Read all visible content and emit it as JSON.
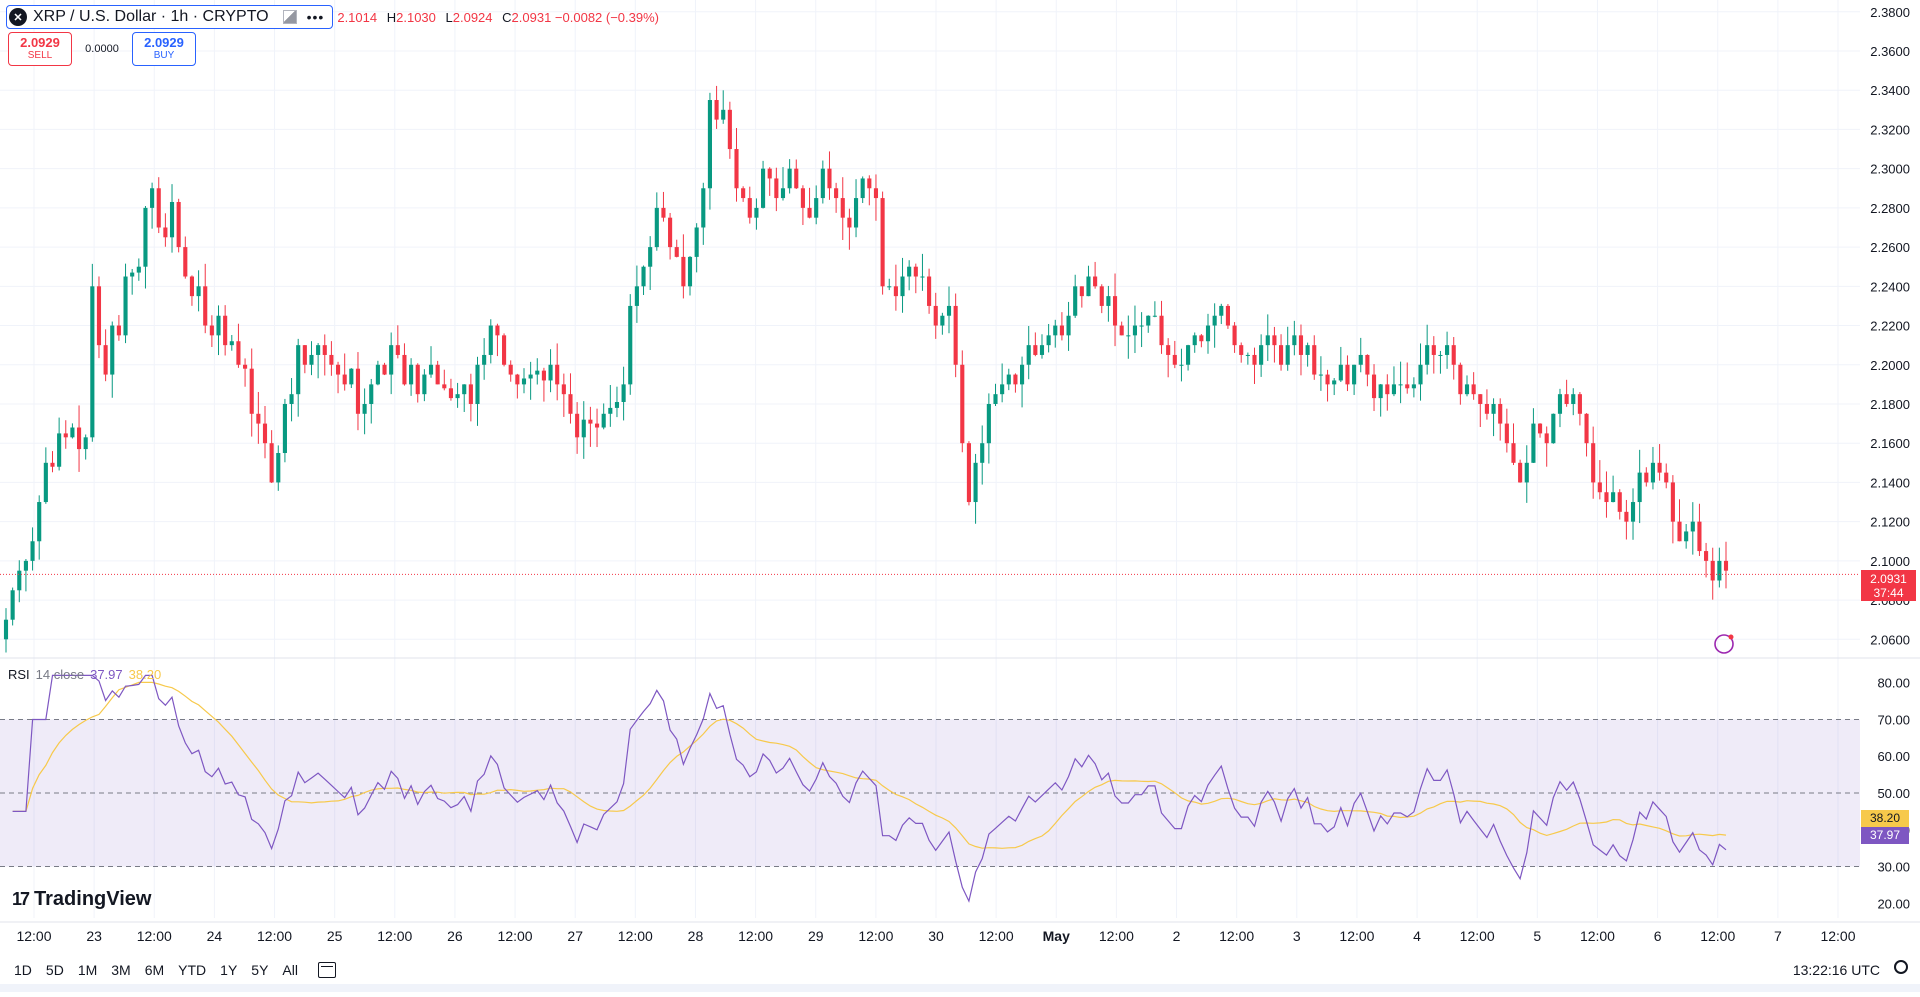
{
  "symbol": {
    "title": "XRP / U.S. Dollar · 1h · CRYPTO",
    "icon": "close-x-icon",
    "more": "•••"
  },
  "ohlc": {
    "o_label": "",
    "o": "2.1014",
    "h_label": "H",
    "h": "2.1030",
    "l_label": "L",
    "l": "2.0924",
    "c_label": "C",
    "c": "2.0931",
    "change": "−0.0082 (−0.39%)"
  },
  "trade": {
    "sell_price": "2.0929",
    "sell_label": "SELL",
    "spread": "0.0000",
    "buy_price": "2.0929",
    "buy_label": "BUY"
  },
  "price_axis": {
    "current_price": "2.0931",
    "countdown": "37:44"
  },
  "rsi": {
    "name": "RSI",
    "params": "14 close",
    "value": "37.97",
    "ma_value": "38.20",
    "value_tag": "37.97",
    "ma_tag": "38.20"
  },
  "logo": {
    "text": "TradingView"
  },
  "ranges": [
    "1D",
    "5D",
    "1M",
    "3M",
    "6M",
    "YTD",
    "1Y",
    "5Y",
    "All"
  ],
  "clock": "13:22:16 UTC",
  "colors": {
    "up": "#089981",
    "down": "#f23645",
    "rsi": "#7e57c2",
    "rsi_ma": "#f7c94b",
    "accent": "#2962ff"
  },
  "chart_data": {
    "type": "candlestick",
    "title": "XRP / U.S. Dollar · 1h · CRYPTO",
    "price_ticks": [
      "2.3800",
      "2.3600",
      "2.3400",
      "2.3200",
      "2.3000",
      "2.2800",
      "2.2600",
      "2.2400",
      "2.2200",
      "2.2000",
      "2.1800",
      "2.1600",
      "2.1400",
      "2.1200",
      "2.1000",
      "2.0800",
      "2.0600"
    ],
    "rsi_ticks": [
      "80.00",
      "70.00",
      "60.00",
      "50.00",
      "40.00",
      "30.00",
      "20.00"
    ],
    "time_ticks": [
      "12:00",
      "23",
      "12:00",
      "24",
      "12:00",
      "25",
      "12:00",
      "26",
      "12:00",
      "27",
      "12:00",
      "28",
      "12:00",
      "29",
      "12:00",
      "30",
      "12:00",
      "May",
      "12:00",
      "2",
      "12:00",
      "3",
      "12:00",
      "4",
      "12:00",
      "5",
      "12:00",
      "6",
      "12:00",
      "7",
      "12:00"
    ],
    "ylim": [
      2.052,
      2.386
    ],
    "rsi_lim": [
      16,
      84
    ],
    "closes": [
      2.07,
      2.085,
      2.095,
      2.1,
      2.11,
      2.13,
      2.15,
      2.148,
      2.165,
      2.163,
      2.168,
      2.157,
      2.163,
      2.24,
      2.21,
      2.195,
      2.22,
      2.215,
      2.245,
      2.247,
      2.25,
      2.28,
      2.29,
      2.27,
      2.265,
      2.283,
      2.26,
      2.245,
      2.235,
      2.24,
      2.22,
      2.215,
      2.225,
      2.21,
      2.212,
      2.2,
      2.198,
      2.175,
      2.17,
      2.16,
      2.14,
      2.155,
      2.18,
      2.185,
      2.21,
      2.2,
      2.205,
      2.21,
      2.205,
      2.2,
      2.195,
      2.19,
      2.198,
      2.175,
      2.18,
      2.19,
      2.2,
      2.195,
      2.21,
      2.205,
      2.19,
      2.2,
      2.185,
      2.195,
      2.2,
      2.19,
      2.188,
      2.183,
      2.185,
      2.19,
      2.18,
      2.2,
      2.205,
      2.22,
      2.215,
      2.2,
      2.195,
      2.19,
      2.193,
      2.195,
      2.197,
      2.192,
      2.2,
      2.19,
      2.185,
      2.175,
      2.163,
      2.172,
      2.17,
      2.168,
      2.175,
      2.178,
      2.181,
      2.19,
      2.23,
      2.24,
      2.25,
      2.26,
      2.28,
      2.275,
      2.26,
      2.255,
      2.24,
      2.255,
      2.27,
      2.29,
      2.335,
      2.325,
      2.33,
      2.31,
      2.29,
      2.285,
      2.275,
      2.28,
      2.3,
      2.295,
      2.285,
      2.29,
      2.3,
      2.29,
      2.28,
      2.275,
      2.285,
      2.3,
      2.29,
      2.285,
      2.275,
      2.27,
      2.285,
      2.295,
      2.29,
      2.285,
      2.24,
      2.24,
      2.235,
      2.245,
      2.25,
      2.245,
      2.245,
      2.23,
      2.22,
      2.225,
      2.23,
      2.2,
      2.16,
      2.13,
      2.15,
      2.16,
      2.18,
      2.185,
      2.19,
      2.195,
      2.19,
      2.2,
      2.21,
      2.205,
      2.21,
      2.215,
      2.22,
      2.215,
      2.225,
      2.24,
      2.235,
      2.245,
      2.24,
      2.23,
      2.235,
      2.22,
      2.215,
      2.215,
      2.22,
      2.22,
      2.225,
      2.225,
      2.21,
      2.205,
      2.2,
      2.2,
      2.21,
      2.215,
      2.212,
      2.22,
      2.225,
      2.23,
      2.22,
      2.21,
      2.205,
      2.205,
      2.2,
      2.21,
      2.215,
      2.21,
      2.2,
      2.21,
      2.215,
      2.205,
      2.21,
      2.195,
      2.195,
      2.19,
      2.192,
      2.2,
      2.19,
      2.2,
      2.205,
      2.195,
      2.183,
      2.19,
      2.185,
      2.19,
      2.19,
      2.188,
      2.19,
      2.2,
      2.21,
      2.205,
      2.205,
      2.21,
      2.2,
      2.185,
      2.19,
      2.185,
      2.18,
      2.175,
      2.18,
      2.17,
      2.16,
      2.15,
      2.14,
      2.15,
      2.17,
      2.165,
      2.16,
      2.175,
      2.185,
      2.18,
      2.185,
      2.175,
      2.16,
      2.14,
      2.135,
      2.13,
      2.135,
      2.125,
      2.12,
      2.13,
      2.145,
      2.14,
      2.15,
      2.145,
      2.14,
      2.12,
      2.11,
      2.115,
      2.12,
      2.105,
      2.1,
      2.09,
      2.1,
      2.095
    ]
  }
}
